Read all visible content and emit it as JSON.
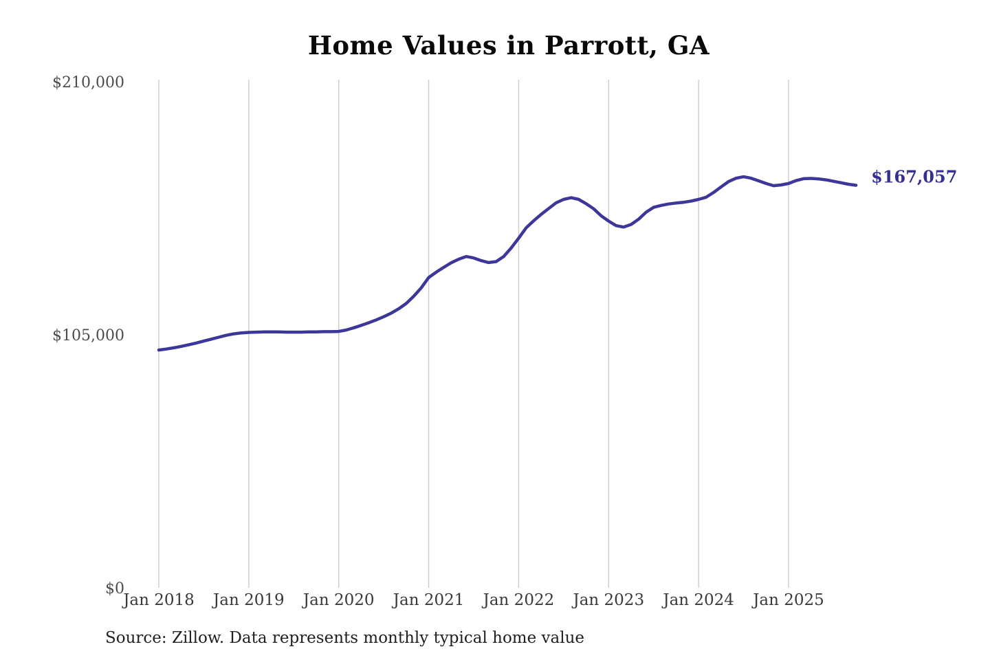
{
  "page": {
    "background": "#ffffff"
  },
  "chart": {
    "title": "Home Values in Parrott, GA",
    "source": "Source: Zillow. Data represents monthly typical home value",
    "colors": {
      "line": "#3d3799",
      "end_label": "#333090",
      "gridline": "#cccccc",
      "y_axis_text": "#4c4c4c",
      "x_axis_text": "#3a3a3a",
      "title_text": "#0a0a0a",
      "source_text": "#1f1f1f"
    }
  },
  "chart_data": {
    "type": "line",
    "title": "Home Values in Parrott, GA",
    "x_start": "Jan 2018",
    "x_end": "Oct 2025",
    "x_frequency": "monthly",
    "x_tick_labels": [
      "Jan 2018",
      "Jan 2019",
      "Jan 2020",
      "Jan 2021",
      "Jan 2022",
      "Jan 2023",
      "Jan 2024",
      "Jan 2025"
    ],
    "y_ticks": [
      0,
      105000,
      210000
    ],
    "y_tick_labels": [
      "$0",
      "$105,000",
      "$210,000"
    ],
    "ylim": [
      0,
      210000
    ],
    "grid": "vertical-only",
    "legend": "none",
    "end_annotation": "$167,057",
    "last_value": 167057,
    "series": [
      {
        "name": "Monthly typical home value",
        "values": [
          98700,
          99100,
          99600,
          100200,
          100900,
          101600,
          102400,
          103200,
          104000,
          104800,
          105400,
          105800,
          106000,
          106100,
          106200,
          106200,
          106200,
          106100,
          106100,
          106100,
          106200,
          106200,
          106300,
          106300,
          106400,
          107000,
          107900,
          108900,
          110000,
          111200,
          112500,
          114000,
          115800,
          118000,
          121000,
          124500,
          128800,
          131000,
          133000,
          134900,
          136400,
          137500,
          136900,
          135800,
          135000,
          135400,
          137500,
          141000,
          145100,
          149400,
          152300,
          155000,
          157400,
          159800,
          161200,
          161900,
          161200,
          159400,
          157300,
          154400,
          152200,
          150300,
          149700,
          150800,
          153000,
          155900,
          157900,
          158700,
          159300,
          159700,
          160000,
          160500,
          161200,
          162100,
          164100,
          166400,
          168600,
          170000,
          170600,
          170000,
          168900,
          167800,
          166900,
          167200,
          167800,
          169000,
          169800,
          169900,
          169700,
          169300,
          168700,
          168100,
          167500,
          167057
        ]
      }
    ],
    "source": "Source: Zillow. Data represents monthly typical home value"
  }
}
